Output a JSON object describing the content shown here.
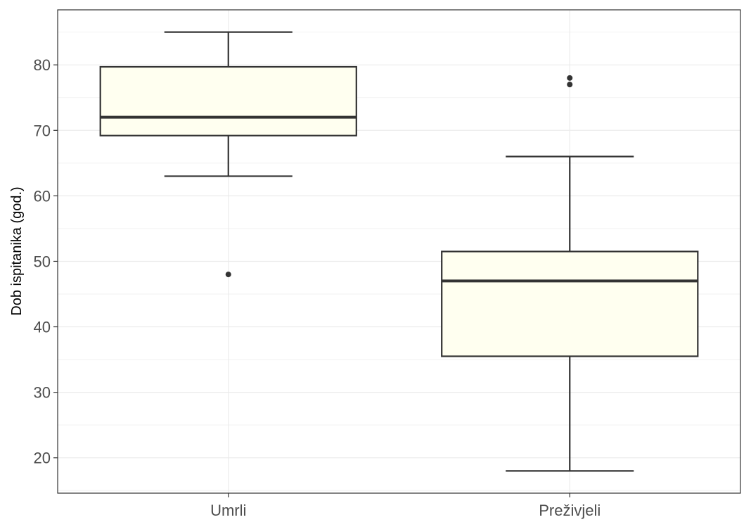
{
  "chart_data": {
    "type": "boxplot",
    "title": "",
    "xlabel": "",
    "ylabel": "Dob ispitanika (god.)",
    "ylim": [
      14.6,
      88.4
    ],
    "yticks": [
      20,
      30,
      40,
      50,
      60,
      70,
      80
    ],
    "grid": true,
    "legend": "none",
    "box_fill": "#fffff0",
    "box_stroke": "#333333",
    "categories": [
      "Umrli",
      "Preživjeli"
    ],
    "boxes": [
      {
        "category": "Umrli",
        "whisker_low": 63,
        "q1": 69.2,
        "median": 72,
        "q3": 79.7,
        "whisker_high": 85,
        "outliers": [
          48
        ]
      },
      {
        "category": "Preživjeli",
        "whisker_low": 18,
        "q1": 35.5,
        "median": 47,
        "q3": 51.5,
        "whisker_high": 66,
        "outliers": [
          77,
          78
        ]
      }
    ]
  }
}
